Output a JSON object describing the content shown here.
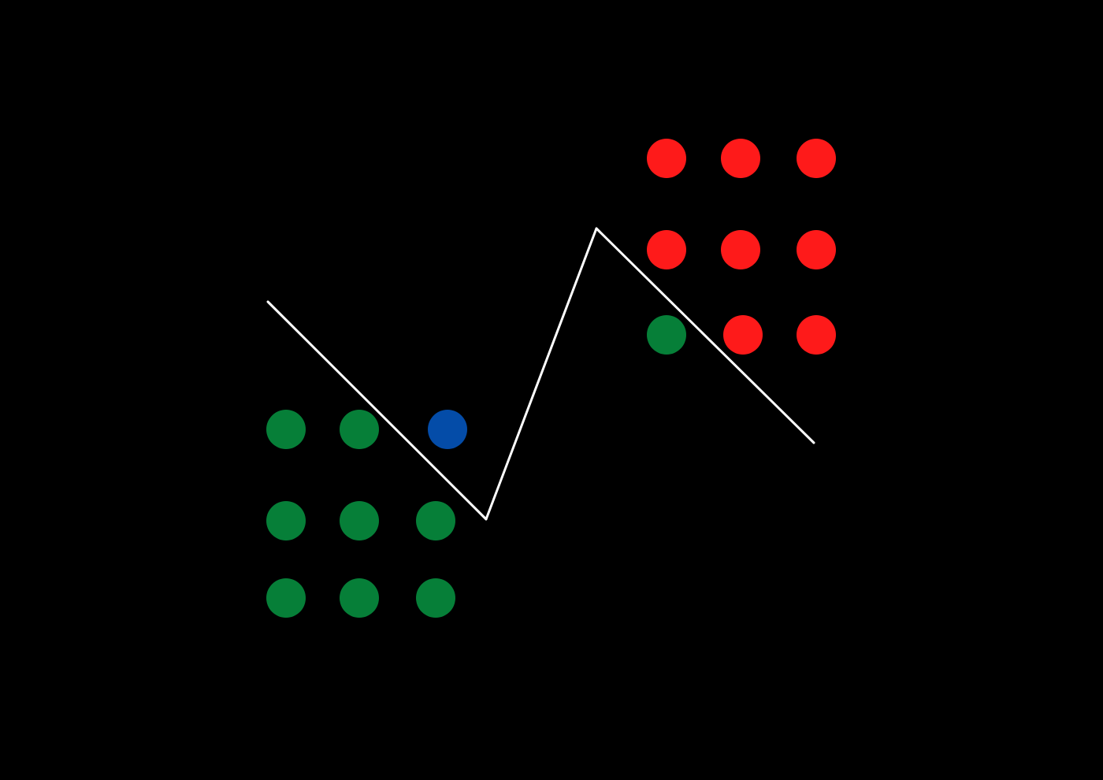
{
  "background_color": "#000000",
  "line_color": "#ffffff",
  "colors": {
    "green": "#067f38",
    "red": "#fe1a1a",
    "blue": "#044ca8"
  },
  "green_cluster": {
    "grid": [
      [
        "green",
        "green",
        "blue"
      ],
      [
        "green",
        "green",
        "green"
      ],
      [
        "green",
        "green",
        "green"
      ]
    ]
  },
  "red_cluster": {
    "grid": [
      [
        "red",
        "red",
        "red"
      ],
      [
        "red",
        "red",
        "red"
      ],
      [
        "green",
        "red",
        "red"
      ]
    ]
  },
  "polyline": {
    "segments": 3
  }
}
